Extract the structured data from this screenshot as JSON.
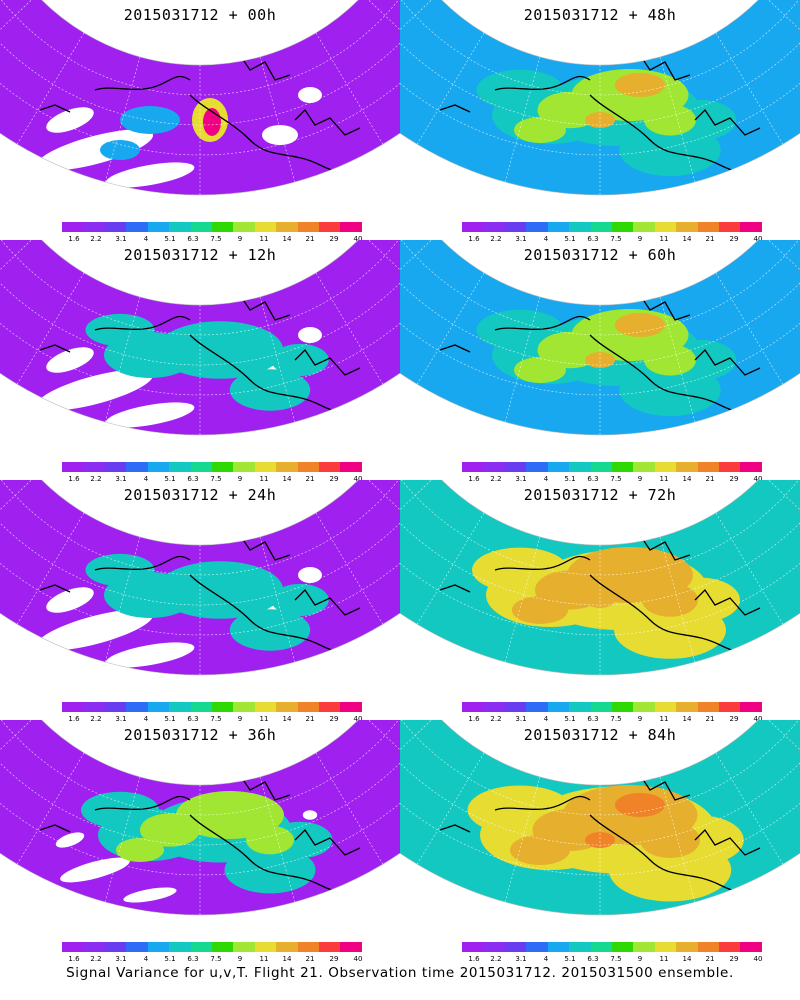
{
  "footer_caption": "Signal Variance for u,v,T. Flight 21. Observation time 2015031712. 2015031500 ensemble.",
  "colorbar": {
    "labels": [
      "1.6",
      "2.2",
      "3.1",
      "4",
      "5.1",
      "6.3",
      "7.5",
      "9",
      "11",
      "14",
      "21",
      "29",
      "40"
    ],
    "colors": [
      "#a020f0",
      "#8c2cf0",
      "#6a3cf0",
      "#2e6cf8",
      "#17a8f0",
      "#12c8c0",
      "#16d890",
      "#2ed800",
      "#a0e632",
      "#e6dc32",
      "#e6af2d",
      "#f08228",
      "#fa3c3c",
      "#f00082"
    ]
  },
  "panels": [
    {
      "id": "00h",
      "title": "2015031712 + 00h",
      "level": 0
    },
    {
      "id": "48h",
      "title": "2015031712 + 48h",
      "level": 3
    },
    {
      "id": "12h",
      "title": "2015031712 + 12h",
      "level": 1
    },
    {
      "id": "60h",
      "title": "2015031712 + 60h",
      "level": 3
    },
    {
      "id": "24h",
      "title": "2015031712 + 24h",
      "level": 1
    },
    {
      "id": "72h",
      "title": "2015031712 + 72h",
      "level": 4
    },
    {
      "id": "36h",
      "title": "2015031712 + 36h",
      "level": 2
    },
    {
      "id": "84h",
      "title": "2015031712 + 84h",
      "level": 5
    }
  ]
}
